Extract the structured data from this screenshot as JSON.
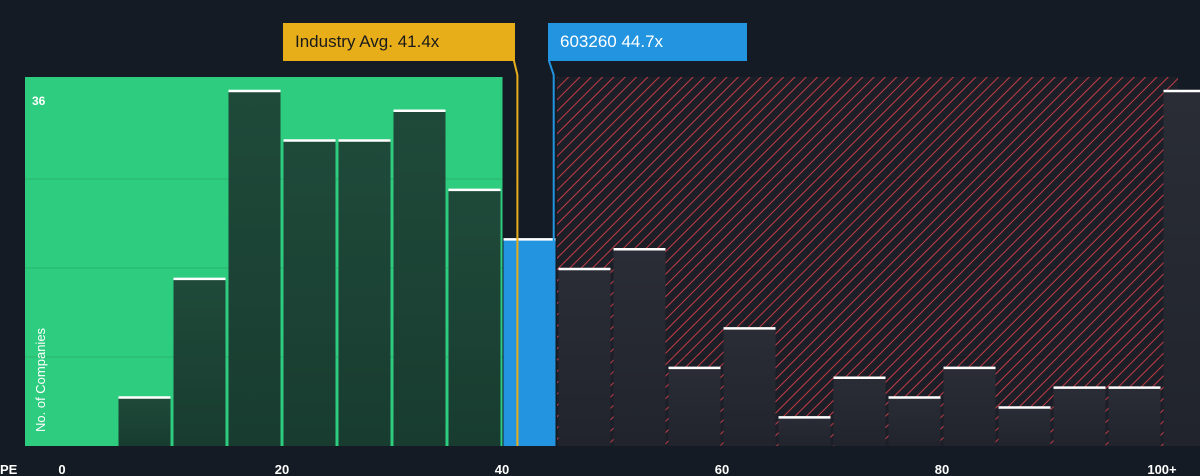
{
  "axis": {
    "x_title": "PE",
    "y_title": "No. of Companies",
    "y_max_label": "36"
  },
  "callouts": {
    "industry_label": "Industry Avg. 41.4x",
    "company_label": "603260 44.7x"
  },
  "colors": {
    "background": "#151b24",
    "undervalued_zone": "#2ecc7e",
    "overvalued_hatch": "#c43c46",
    "industry": "#e8ae1a",
    "company": "#2394e0",
    "bar_green": "#1f4a3a",
    "bar_dark": "#262a33"
  },
  "chart_data": {
    "type": "bar",
    "title": "",
    "xlabel": "PE",
    "ylabel": "No. of Companies",
    "xlim": [
      0,
      100
    ],
    "ylim": [
      0,
      36
    ],
    "x_ticks": [
      {
        "value": 0,
        "label": "0"
      },
      {
        "value": 20,
        "label": "20"
      },
      {
        "value": 40,
        "label": "40"
      },
      {
        "value": 60,
        "label": "60"
      },
      {
        "value": 80,
        "label": "80"
      },
      {
        "value": 100,
        "label": "100+"
      }
    ],
    "y_ticks": [
      {
        "value": 36,
        "label": "36"
      }
    ],
    "bins": [
      {
        "start": 0,
        "end": 5,
        "count": 0
      },
      {
        "start": 5,
        "end": 10,
        "count": 5
      },
      {
        "start": 10,
        "end": 15,
        "count": 17
      },
      {
        "start": 15,
        "end": 20,
        "count": 36
      },
      {
        "start": 20,
        "end": 25,
        "count": 31
      },
      {
        "start": 25,
        "end": 30,
        "count": 31
      },
      {
        "start": 30,
        "end": 35,
        "count": 34
      },
      {
        "start": 35,
        "end": 40,
        "count": 26
      },
      {
        "start": 40,
        "end": 45,
        "count": 21,
        "highlight": true
      },
      {
        "start": 45,
        "end": 50,
        "count": 18
      },
      {
        "start": 50,
        "end": 55,
        "count": 20
      },
      {
        "start": 55,
        "end": 60,
        "count": 8
      },
      {
        "start": 60,
        "end": 65,
        "count": 12
      },
      {
        "start": 65,
        "end": 70,
        "count": 3
      },
      {
        "start": 70,
        "end": 75,
        "count": 7
      },
      {
        "start": 75,
        "end": 80,
        "count": 5
      },
      {
        "start": 80,
        "end": 85,
        "count": 8
      },
      {
        "start": 85,
        "end": 90,
        "count": 4
      },
      {
        "start": 90,
        "end": 95,
        "count": 6
      },
      {
        "start": 95,
        "end": 100,
        "count": 6
      },
      {
        "start": 100,
        "end": 105,
        "count": 36
      }
    ],
    "industry_avg": 41.4,
    "company_pe": 44.7,
    "company_ticker": "603260",
    "undervalued_zone": [
      0,
      40
    ],
    "overvalued_zone": [
      45,
      105
    ]
  }
}
